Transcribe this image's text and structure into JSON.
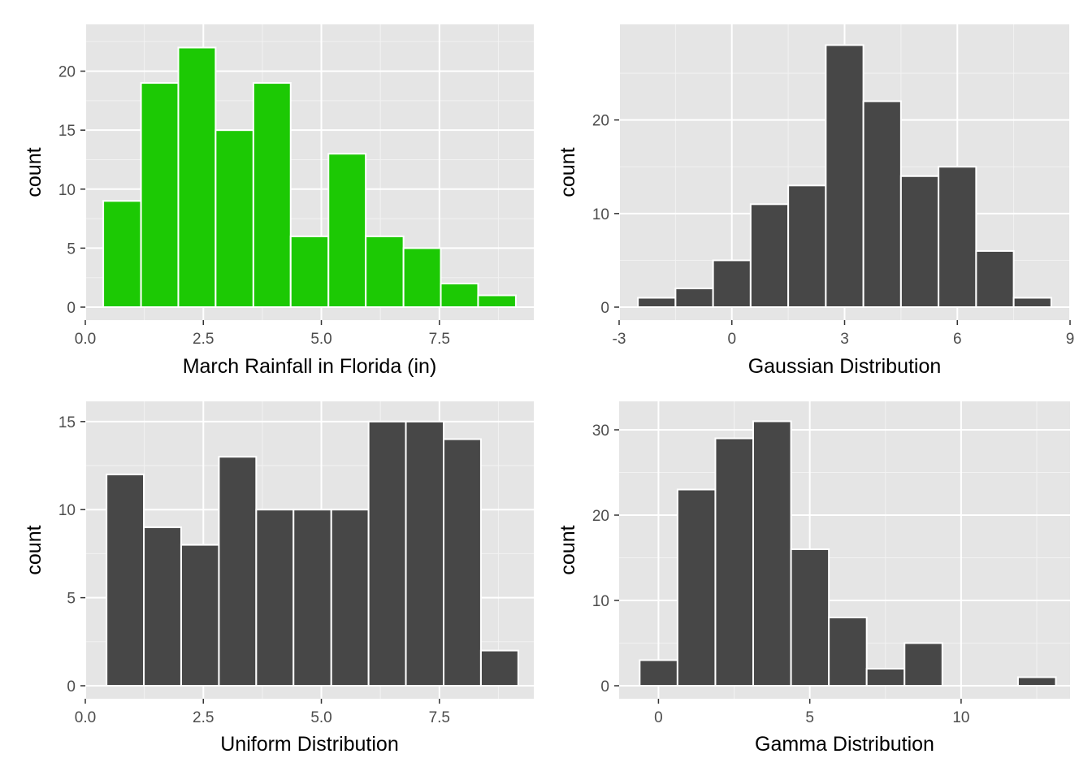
{
  "chart_data": [
    {
      "type": "histogram",
      "xlabel": "March Rainfall in Florida (in)",
      "ylabel": "count",
      "fill": "#1cc904",
      "outline": "#ffffff",
      "panel_background": "#e5e5e5",
      "grid": true,
      "xlim": [
        0.0,
        9.5
      ],
      "ylim": [
        0,
        23
      ],
      "x_ticks": [
        0.0,
        2.5,
        5.0,
        7.5
      ],
      "x_tick_labels": [
        "0.0",
        "2.5",
        "5.0",
        "7.5"
      ],
      "y_ticks": [
        0,
        5,
        10,
        15,
        20
      ],
      "y_tick_labels": [
        "0",
        "5",
        "10",
        "15",
        "20"
      ],
      "bins": [
        {
          "x_start": 0.38,
          "x_end": 1.18,
          "count": 9
        },
        {
          "x_start": 1.18,
          "x_end": 1.97,
          "count": 19
        },
        {
          "x_start": 1.97,
          "x_end": 2.76,
          "count": 22
        },
        {
          "x_start": 2.76,
          "x_end": 3.56,
          "count": 15
        },
        {
          "x_start": 3.56,
          "x_end": 4.35,
          "count": 19
        },
        {
          "x_start": 4.35,
          "x_end": 5.15,
          "count": 6
        },
        {
          "x_start": 5.15,
          "x_end": 5.94,
          "count": 13
        },
        {
          "x_start": 5.94,
          "x_end": 6.74,
          "count": 6
        },
        {
          "x_start": 6.74,
          "x_end": 7.53,
          "count": 5
        },
        {
          "x_start": 7.53,
          "x_end": 8.32,
          "count": 2
        },
        {
          "x_start": 8.32,
          "x_end": 9.12,
          "count": 1
        }
      ]
    },
    {
      "type": "histogram",
      "xlabel": "Gaussian Distribution",
      "ylabel": "count",
      "fill": "#474747",
      "outline": "#ffffff",
      "panel_background": "#e5e5e5",
      "grid": true,
      "xlim": [
        -3.0,
        9.0
      ],
      "ylim": [
        0,
        29
      ],
      "x_ticks": [
        -3,
        0,
        3,
        6,
        9
      ],
      "x_tick_labels": [
        "-3",
        "0",
        "3",
        "6",
        "9"
      ],
      "y_ticks": [
        0,
        10,
        20
      ],
      "y_tick_labels": [
        "0",
        "10",
        "20"
      ],
      "bins": [
        {
          "x_start": -2.5,
          "x_end": -1.5,
          "count": 1
        },
        {
          "x_start": -1.5,
          "x_end": -0.5,
          "count": 2
        },
        {
          "x_start": -0.5,
          "x_end": 0.5,
          "count": 5
        },
        {
          "x_start": 0.5,
          "x_end": 1.5,
          "count": 11
        },
        {
          "x_start": 1.5,
          "x_end": 2.5,
          "count": 13
        },
        {
          "x_start": 2.5,
          "x_end": 3.5,
          "count": 28
        },
        {
          "x_start": 3.5,
          "x_end": 4.5,
          "count": 22
        },
        {
          "x_start": 4.5,
          "x_end": 5.5,
          "count": 14
        },
        {
          "x_start": 5.5,
          "x_end": 6.5,
          "count": 15
        },
        {
          "x_start": 6.5,
          "x_end": 7.5,
          "count": 6
        },
        {
          "x_start": 7.5,
          "x_end": 8.5,
          "count": 1
        }
      ]
    },
    {
      "type": "histogram",
      "xlabel": "Uniform Distribution",
      "ylabel": "count",
      "fill": "#474747",
      "outline": "#ffffff",
      "panel_background": "#e5e5e5",
      "grid": true,
      "xlim": [
        0.0,
        9.5
      ],
      "ylim": [
        0,
        15.5
      ],
      "x_ticks": [
        0.0,
        2.5,
        5.0,
        7.5
      ],
      "x_tick_labels": [
        "0.0",
        "2.5",
        "5.0",
        "7.5"
      ],
      "y_ticks": [
        0,
        5,
        10,
        15
      ],
      "y_tick_labels": [
        "0",
        "5",
        "10",
        "15"
      ],
      "bins": [
        {
          "x_start": 0.45,
          "x_end": 1.24,
          "count": 12
        },
        {
          "x_start": 1.24,
          "x_end": 2.03,
          "count": 9
        },
        {
          "x_start": 2.03,
          "x_end": 2.83,
          "count": 8
        },
        {
          "x_start": 2.83,
          "x_end": 3.62,
          "count": 13
        },
        {
          "x_start": 3.62,
          "x_end": 4.41,
          "count": 10
        },
        {
          "x_start": 4.41,
          "x_end": 5.21,
          "count": 10
        },
        {
          "x_start": 5.21,
          "x_end": 6.0,
          "count": 10
        },
        {
          "x_start": 6.0,
          "x_end": 6.79,
          "count": 15
        },
        {
          "x_start": 6.79,
          "x_end": 7.59,
          "count": 15
        },
        {
          "x_start": 7.59,
          "x_end": 8.38,
          "count": 14
        },
        {
          "x_start": 8.38,
          "x_end": 9.17,
          "count": 2
        }
      ]
    },
    {
      "type": "histogram",
      "xlabel": "Gamma Distribution",
      "ylabel": "count",
      "fill": "#474747",
      "outline": "#ffffff",
      "panel_background": "#e5e5e5",
      "grid": true,
      "xlim": [
        -1.3,
        13.6
      ],
      "ylim": [
        0,
        32
      ],
      "x_ticks": [
        0,
        5,
        10
      ],
      "x_tick_labels": [
        "0",
        "5",
        "10"
      ],
      "y_ticks": [
        0,
        10,
        20,
        30
      ],
      "y_tick_labels": [
        "0",
        "10",
        "20",
        "30"
      ],
      "bins": [
        {
          "x_start": -0.62,
          "x_end": 0.63,
          "count": 3
        },
        {
          "x_start": 0.63,
          "x_end": 1.88,
          "count": 23
        },
        {
          "x_start": 1.88,
          "x_end": 3.13,
          "count": 29
        },
        {
          "x_start": 3.13,
          "x_end": 4.38,
          "count": 31
        },
        {
          "x_start": 4.38,
          "x_end": 5.63,
          "count": 16
        },
        {
          "x_start": 5.63,
          "x_end": 6.88,
          "count": 8
        },
        {
          "x_start": 6.88,
          "x_end": 8.13,
          "count": 2
        },
        {
          "x_start": 8.13,
          "x_end": 9.38,
          "count": 5
        },
        {
          "x_start": 9.38,
          "x_end": 10.63,
          "count": 0
        },
        {
          "x_start": 10.63,
          "x_end": 11.88,
          "count": 0
        },
        {
          "x_start": 11.88,
          "x_end": 13.13,
          "count": 1
        }
      ]
    }
  ]
}
